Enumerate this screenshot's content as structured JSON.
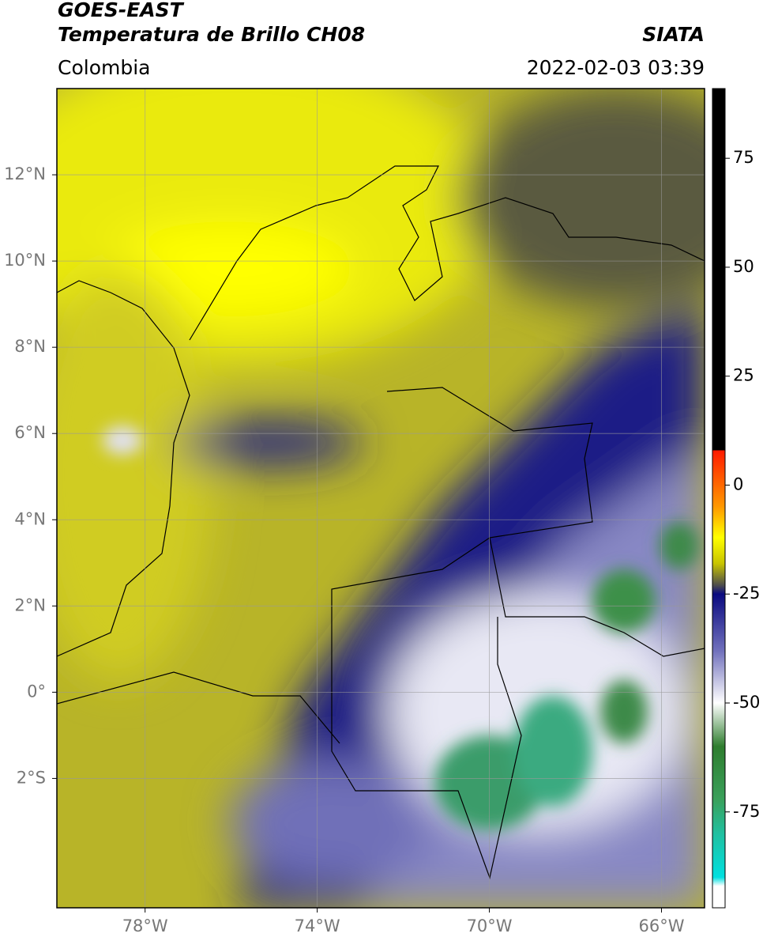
{
  "header": {
    "satellite": "GOES-EAST",
    "product": "Temperatura de Brillo CH08",
    "source": "SIATA",
    "region": "Colombia",
    "timestamp": "2022-02-03 03:39"
  },
  "chart_data": {
    "type": "map",
    "xlim": [
      -80.05,
      -65
    ],
    "ylim": [
      -5,
      14
    ],
    "xticks": [
      {
        "value": -78,
        "label": "78°W"
      },
      {
        "value": -74,
        "label": "74°W"
      },
      {
        "value": -70,
        "label": "70°W"
      },
      {
        "value": -66,
        "label": "66°W"
      }
    ],
    "yticks": [
      {
        "value": 12,
        "label": "12°N"
      },
      {
        "value": 10,
        "label": "10°N"
      },
      {
        "value": 8,
        "label": "8°N"
      },
      {
        "value": 6,
        "label": "6°N"
      },
      {
        "value": 4,
        "label": "4°N"
      },
      {
        "value": 2,
        "label": "2°N"
      },
      {
        "value": 0,
        "label": "0°"
      },
      {
        "value": -2,
        "label": "2°S"
      }
    ],
    "grid": true,
    "colorbar": {
      "lim": [
        -97,
        91
      ],
      "ticks": [
        75,
        50,
        25,
        0,
        -25,
        -50,
        -75
      ],
      "stops": [
        {
          "value": 91,
          "color": "#000000"
        },
        {
          "value": 8,
          "color": "#000000"
        },
        {
          "value": 8,
          "color": "#ff1a00"
        },
        {
          "value": -5,
          "color": "#ff9900"
        },
        {
          "value": -12,
          "color": "#ffff00"
        },
        {
          "value": -18,
          "color": "#c8c400"
        },
        {
          "value": -23,
          "color": "#4d4d4d"
        },
        {
          "value": -25,
          "color": "#0a0a80"
        },
        {
          "value": -38,
          "color": "#7070bc"
        },
        {
          "value": -50,
          "color": "#ffffff"
        },
        {
          "value": -60,
          "color": "#2e7d2e"
        },
        {
          "value": -72,
          "color": "#3aa05a"
        },
        {
          "value": -80,
          "color": "#20c0a0"
        },
        {
          "value": -90,
          "color": "#00e0e0"
        },
        {
          "value": -92,
          "color": "#ffffff"
        },
        {
          "value": -97,
          "color": "#ffffff"
        }
      ]
    }
  }
}
